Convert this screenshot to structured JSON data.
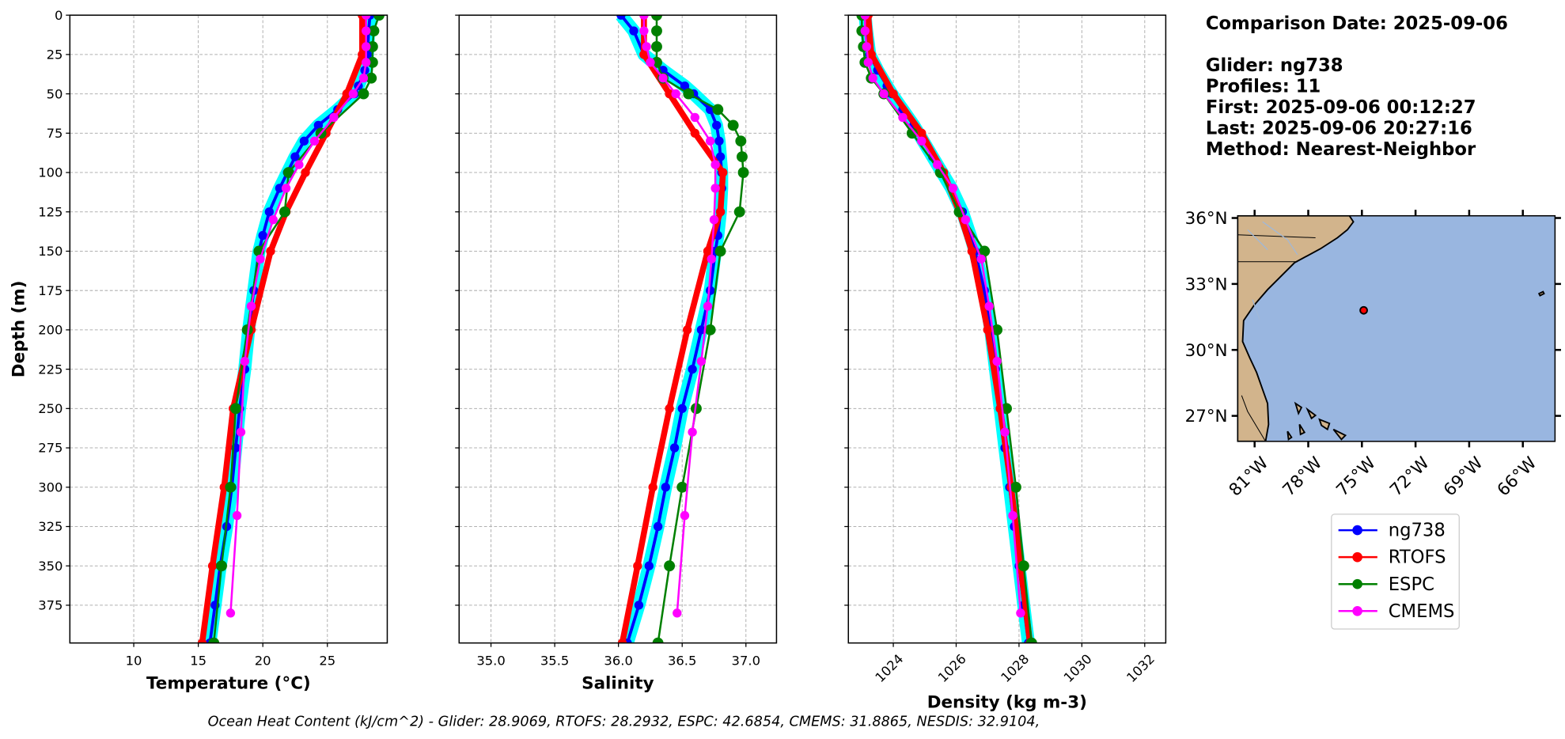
{
  "chart_data": [
    {
      "type": "profile",
      "xlabel": "Temperature (°C)",
      "ylabel": "Depth (m)",
      "xlim": [
        5.05,
        29.64
      ],
      "xticks": [
        10,
        15,
        20,
        25
      ],
      "ylim": [
        0,
        399
      ],
      "y_inverted": true,
      "yticks": [
        0,
        25,
        50,
        75,
        100,
        125,
        150,
        175,
        200,
        225,
        250,
        275,
        300,
        325,
        350,
        375
      ],
      "ytick_labels": true,
      "grid": true,
      "series": [
        {
          "name": "ng738",
          "color": "#0000ff",
          "band_color": "#00ffff",
          "depth": [
            0,
            10,
            25,
            35,
            45,
            50,
            60,
            70,
            80,
            90,
            100,
            110,
            125,
            140,
            150,
            175,
            200,
            225,
            250,
            275,
            300,
            325,
            350,
            375,
            399
          ],
          "values": [
            28.3,
            28.2,
            28.1,
            27.9,
            27.4,
            27.1,
            25.8,
            24.3,
            23.2,
            22.5,
            21.9,
            21.3,
            20.5,
            20.0,
            19.7,
            19.3,
            18.9,
            18.6,
            18.2,
            17.9,
            17.6,
            17.2,
            16.7,
            16.3,
            15.9
          ]
        },
        {
          "name": "RTOFS",
          "color": "#ff0000",
          "depth": [
            0,
            25,
            50,
            75,
            100,
            125,
            150,
            200,
            250,
            300,
            350,
            399
          ],
          "values": [
            27.7,
            27.7,
            26.5,
            24.9,
            23.3,
            21.8,
            20.6,
            19.1,
            17.7,
            17.0,
            16.1,
            15.3
          ]
        },
        {
          "name": "ESPC",
          "color": "#008000",
          "depth": [
            0,
            10,
            20,
            30,
            40,
            50,
            75,
            100,
            125,
            150,
            200,
            250,
            300,
            350,
            399
          ],
          "values": [
            29.0,
            28.6,
            28.5,
            28.5,
            28.4,
            27.8,
            24.5,
            22.0,
            21.7,
            19.7,
            18.8,
            17.9,
            17.5,
            16.8,
            16.2
          ]
        },
        {
          "name": "CMEMS",
          "color": "#ff00ff",
          "depth": [
            0,
            10,
            20,
            30,
            40,
            50,
            65,
            80,
            95,
            110,
            130,
            155,
            185,
            220,
            265,
            318,
            380
          ],
          "values": [
            28.0,
            28.0,
            28.0,
            28.0,
            27.8,
            27.0,
            25.5,
            24.0,
            22.8,
            21.8,
            20.8,
            19.8,
            19.1,
            18.6,
            18.3,
            18.0,
            17.5
          ]
        }
      ]
    },
    {
      "type": "profile",
      "xlabel": "Salinity",
      "xlim": [
        34.75,
        37.24
      ],
      "xticks": [
        {
          "value": 35,
          "label": "35.0"
        },
        35.5,
        {
          "value": 36,
          "label": "36.0"
        },
        36.5,
        {
          "value": 37,
          "label": "37.0"
        }
      ],
      "ylim": [
        0,
        399
      ],
      "y_inverted": true,
      "yticks": [
        0,
        25,
        50,
        75,
        100,
        125,
        150,
        175,
        200,
        225,
        250,
        275,
        300,
        325,
        350,
        375
      ],
      "ytick_labels": false,
      "grid": true,
      "series": [
        {
          "name": "ng738",
          "color": "#0000ff",
          "band_color": "#00ffff",
          "depth": [
            0,
            10,
            25,
            35,
            45,
            50,
            60,
            70,
            80,
            90,
            100,
            110,
            125,
            140,
            150,
            175,
            200,
            225,
            250,
            275,
            300,
            325,
            350,
            375,
            399
          ],
          "values": [
            36.02,
            36.12,
            36.2,
            36.35,
            36.52,
            36.59,
            36.72,
            36.77,
            36.79,
            36.8,
            36.81,
            36.81,
            36.8,
            36.78,
            36.76,
            36.72,
            36.65,
            36.58,
            36.5,
            36.44,
            36.37,
            36.31,
            36.24,
            36.16,
            36.07
          ]
        },
        {
          "name": "RTOFS",
          "color": "#ff0000",
          "depth": [
            0,
            25,
            50,
            75,
            100,
            125,
            150,
            200,
            250,
            300,
            350,
            399
          ],
          "values": [
            36.2,
            36.2,
            36.4,
            36.6,
            36.82,
            36.8,
            36.7,
            36.54,
            36.4,
            36.27,
            36.15,
            36.03
          ]
        },
        {
          "name": "ESPC",
          "color": "#008000",
          "depth": [
            0,
            10,
            20,
            30,
            40,
            50,
            60,
            70,
            80,
            90,
            100,
            125,
            150,
            200,
            250,
            300,
            350,
            399
          ],
          "values": [
            36.3,
            36.3,
            36.3,
            36.3,
            36.35,
            36.55,
            36.78,
            36.9,
            36.96,
            36.97,
            36.98,
            36.95,
            36.8,
            36.72,
            36.61,
            36.5,
            36.4,
            36.31
          ]
        },
        {
          "name": "CMEMS",
          "color": "#ff00ff",
          "depth": [
            0,
            10,
            20,
            30,
            40,
            50,
            65,
            80,
            95,
            110,
            130,
            155,
            185,
            220,
            265,
            318,
            380
          ],
          "values": [
            36.2,
            36.2,
            36.22,
            36.25,
            36.35,
            36.45,
            36.6,
            36.72,
            36.76,
            36.76,
            36.75,
            36.73,
            36.7,
            36.65,
            36.58,
            36.52,
            36.46
          ]
        }
      ]
    },
    {
      "type": "profile",
      "xlabel": "Density (kg m-3)",
      "xlim": [
        1022.57,
        1032.67
      ],
      "xticks": [
        1024,
        1026,
        1028,
        1030,
        1032
      ],
      "xtick_rotation": 45,
      "ylim": [
        0,
        399
      ],
      "y_inverted": true,
      "yticks": [
        0,
        25,
        50,
        75,
        100,
        125,
        150,
        175,
        200,
        225,
        250,
        275,
        300,
        325,
        350,
        375
      ],
      "ytick_labels": false,
      "grid": true,
      "series": [
        {
          "name": "ng738",
          "color": "#0000ff",
          "band_color": "#00ffff",
          "depth": [
            0,
            10,
            25,
            35,
            45,
            50,
            60,
            70,
            80,
            90,
            100,
            110,
            125,
            140,
            150,
            175,
            200,
            225,
            250,
            275,
            300,
            325,
            350,
            375,
            399
          ],
          "values": [
            1023.1,
            1023.15,
            1023.25,
            1023.5,
            1023.8,
            1023.95,
            1024.3,
            1024.65,
            1024.95,
            1025.25,
            1025.55,
            1025.85,
            1026.2,
            1026.45,
            1026.6,
            1026.9,
            1027.1,
            1027.25,
            1027.4,
            1027.55,
            1027.7,
            1027.85,
            1028.0,
            1028.15,
            1028.3
          ]
        },
        {
          "name": "RTOFS",
          "color": "#ff0000",
          "depth": [
            0,
            25,
            50,
            75,
            100,
            125,
            150,
            200,
            250,
            300,
            350,
            399
          ],
          "values": [
            1023.2,
            1023.3,
            1024.0,
            1024.9,
            1025.6,
            1026.1,
            1026.5,
            1027.0,
            1027.4,
            1027.75,
            1028.05,
            1028.35
          ]
        },
        {
          "name": "ESPC",
          "color": "#008000",
          "depth": [
            0,
            10,
            20,
            30,
            40,
            50,
            75,
            100,
            125,
            150,
            200,
            250,
            300,
            350,
            399
          ],
          "values": [
            1023.0,
            1023.0,
            1023.05,
            1023.1,
            1023.3,
            1023.7,
            1024.6,
            1025.5,
            1026.1,
            1026.9,
            1027.3,
            1027.6,
            1027.9,
            1028.15,
            1028.4
          ]
        },
        {
          "name": "CMEMS",
          "color": "#ff00ff",
          "depth": [
            0,
            10,
            20,
            30,
            40,
            50,
            65,
            80,
            95,
            110,
            130,
            155,
            185,
            220,
            265,
            318,
            380
          ],
          "values": [
            1023.1,
            1023.1,
            1023.15,
            1023.2,
            1023.35,
            1023.7,
            1024.3,
            1024.9,
            1025.4,
            1025.9,
            1026.3,
            1026.8,
            1027.05,
            1027.3,
            1027.55,
            1027.8,
            1028.05
          ]
        }
      ]
    }
  ],
  "info": {
    "comparison_date": "Comparison Date: 2025-09-06",
    "glider": "Glider: ng738",
    "profiles": "Profiles: 11",
    "first": "First: 2025-09-06 00:12:27",
    "last": "Last: 2025-09-06 20:27:16",
    "method": "Method: Nearest-Neighbor"
  },
  "map": {
    "xlim": [
      -81.95,
      -64.2
    ],
    "ylim": [
      25.84,
      36.1
    ],
    "xticks": [
      {
        "value": -81,
        "label": "81°W"
      },
      {
        "value": -78,
        "label": "78°W"
      },
      {
        "value": -75,
        "label": "75°W"
      },
      {
        "value": -72,
        "label": "72°W"
      },
      {
        "value": -69,
        "label": "69°W"
      },
      {
        "value": -66,
        "label": "66°W"
      }
    ],
    "yticks": [
      {
        "value": 36,
        "label": "36°N"
      },
      {
        "value": 33,
        "label": "33°N"
      },
      {
        "value": 30,
        "label": "30°N"
      },
      {
        "value": 27,
        "label": "27°N"
      }
    ],
    "glider_position": {
      "lon": -74.9,
      "lat": 31.8,
      "color": "#ff0000"
    }
  },
  "footer": "Ocean Heat Content (kJ/cm^2) - Glider: 28.9069,  RTOFS: 28.2932,  ESPC: 42.6854,  CMEMS: 31.8865,  NESDIS: 32.9104,"
}
